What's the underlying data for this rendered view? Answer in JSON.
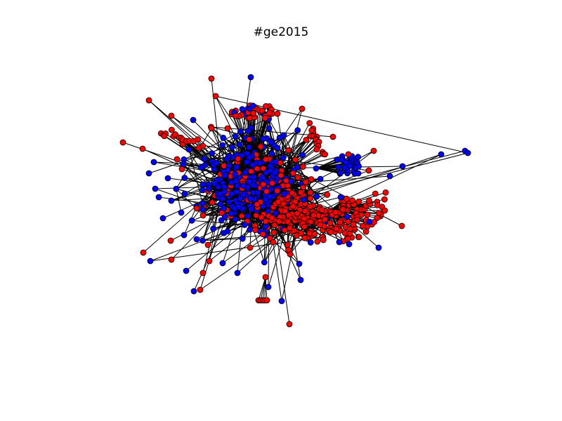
{
  "title": "#ge2015",
  "graph": {
    "type": "network",
    "node_colors": {
      "a": "#ff0000",
      "b": "#0000ff"
    },
    "edge_color": "#000000",
    "node_outline": "#000000",
    "approx_node_count": 900,
    "legend": "none",
    "axes": "none"
  }
}
